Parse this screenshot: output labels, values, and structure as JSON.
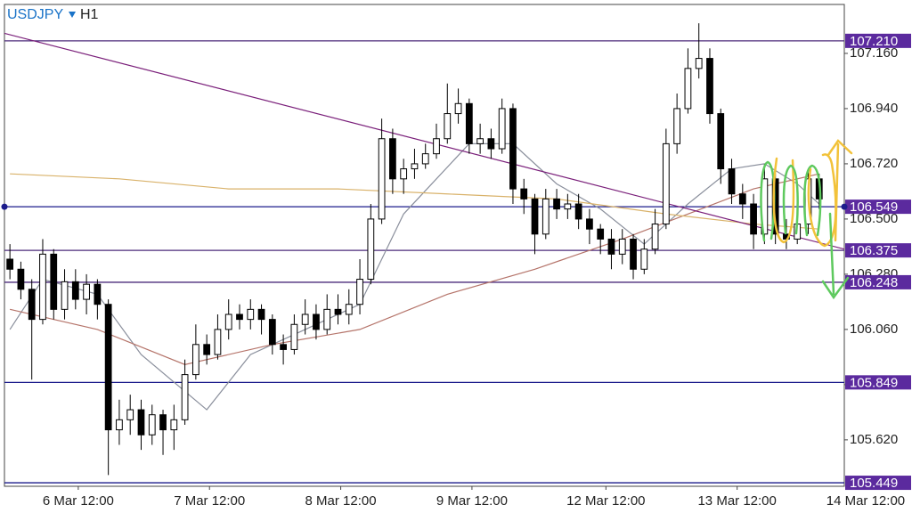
{
  "header": {
    "symbol": "USDJPY",
    "timeframe": "H1"
  },
  "chart_data": {
    "type": "candlestick",
    "up_color": "#ffffff",
    "down_color": "#000000",
    "open": [
      106.34,
      106.3,
      106.22,
      106.1,
      106.36,
      106.14,
      106.25,
      106.18,
      106.24,
      106.16,
      105.66,
      105.7,
      105.74,
      105.64,
      105.72,
      105.66,
      105.7,
      105.88,
      106.0,
      105.96,
      106.06,
      106.12,
      106.1,
      106.14,
      106.1,
      106.0,
      105.98,
      106.08,
      106.12,
      106.06,
      106.14,
      106.12,
      106.16,
      106.26,
      106.5,
      106.82,
      106.66,
      106.7,
      106.72,
      106.76,
      106.82,
      106.92,
      106.96,
      106.8,
      106.82,
      106.78,
      106.94,
      106.62,
      106.58,
      106.44,
      106.58,
      106.54,
      106.56,
      106.5,
      106.46,
      106.42,
      106.36,
      106.42,
      106.3,
      106.38,
      106.48,
      106.8,
      106.94,
      107.1,
      107.14,
      106.92,
      106.7,
      106.6,
      106.56,
      106.44,
      106.66,
      106.44,
      106.42,
      106.48,
      106.66
    ],
    "high": [
      106.4,
      106.33,
      106.26,
      106.42,
      106.38,
      106.3,
      106.3,
      106.28,
      106.26,
      106.18,
      105.78,
      105.8,
      105.78,
      105.76,
      105.74,
      105.76,
      105.94,
      106.08,
      106.04,
      106.12,
      106.18,
      106.16,
      106.18,
      106.16,
      106.12,
      106.04,
      106.12,
      106.18,
      106.16,
      106.2,
      106.2,
      106.22,
      106.34,
      106.56,
      106.9,
      106.86,
      106.74,
      106.78,
      106.8,
      106.88,
      107.04,
      107.02,
      106.98,
      106.88,
      106.86,
      106.98,
      106.96,
      106.66,
      106.6,
      106.62,
      106.62,
      106.6,
      106.6,
      106.54,
      106.48,
      106.46,
      106.46,
      106.44,
      106.42,
      106.54,
      106.86,
      107.0,
      107.18,
      107.28,
      107.18,
      106.94,
      106.74,
      106.64,
      106.6,
      106.72,
      106.68,
      106.5,
      106.54,
      106.7,
      106.68
    ],
    "low": [
      106.26,
      106.18,
      105.86,
      106.08,
      106.1,
      106.1,
      106.14,
      106.12,
      106.1,
      105.48,
      105.6,
      105.64,
      105.58,
      105.6,
      105.56,
      105.58,
      105.68,
      105.86,
      105.92,
      105.94,
      106.02,
      106.06,
      106.06,
      106.04,
      105.96,
      105.92,
      105.96,
      106.04,
      106.02,
      106.04,
      106.08,
      106.08,
      106.12,
      106.24,
      106.48,
      106.6,
      106.6,
      106.66,
      106.7,
      106.74,
      106.8,
      106.88,
      106.76,
      106.76,
      106.74,
      106.76,
      106.56,
      106.52,
      106.36,
      106.42,
      106.5,
      106.5,
      106.46,
      106.4,
      106.36,
      106.3,
      106.32,
      106.26,
      106.28,
      106.36,
      106.46,
      106.76,
      106.92,
      107.06,
      106.88,
      106.64,
      106.56,
      106.5,
      106.38,
      106.4,
      106.4,
      106.38,
      106.4,
      106.44,
      106.54
    ],
    "close": [
      106.3,
      106.22,
      106.1,
      106.36,
      106.14,
      106.25,
      106.18,
      106.24,
      106.16,
      105.66,
      105.7,
      105.74,
      105.64,
      105.72,
      105.66,
      105.7,
      105.88,
      106.0,
      105.96,
      106.06,
      106.12,
      106.1,
      106.14,
      106.1,
      106.0,
      105.98,
      106.08,
      106.12,
      106.06,
      106.14,
      106.12,
      106.16,
      106.26,
      106.5,
      106.82,
      106.66,
      106.7,
      106.72,
      106.76,
      106.82,
      106.92,
      106.96,
      106.8,
      106.82,
      106.78,
      106.94,
      106.62,
      106.58,
      106.44,
      106.58,
      106.54,
      106.56,
      106.5,
      106.46,
      106.42,
      106.36,
      106.42,
      106.3,
      106.38,
      106.48,
      106.8,
      106.94,
      107.1,
      107.14,
      106.92,
      106.7,
      106.6,
      106.56,
      106.44,
      106.66,
      106.44,
      106.42,
      106.48,
      106.66,
      106.58
    ],
    "lines": [
      {
        "color": "#8a8f9c",
        "x": [
          0,
          3,
          8,
          12,
          18,
          22,
          27,
          32,
          36,
          42,
          46,
          50,
          54,
          58,
          62,
          66,
          69,
          72,
          74
        ],
        "values": [
          106.06,
          106.26,
          106.2,
          105.96,
          105.74,
          105.96,
          106.06,
          106.16,
          106.52,
          106.8,
          106.8,
          106.64,
          106.54,
          106.4,
          106.56,
          106.7,
          106.72,
          106.64,
          106.56
        ]
      },
      {
        "color": "#b5746a",
        "x": [
          0,
          8,
          16,
          24,
          32,
          40,
          48,
          56,
          62,
          68,
          74
        ],
        "values": [
          106.14,
          106.06,
          105.92,
          106.0,
          106.06,
          106.2,
          106.3,
          106.42,
          106.52,
          106.62,
          106.68
        ]
      },
      {
        "color": "#d9b26a",
        "x": [
          0,
          10,
          20,
          30,
          40,
          50,
          60,
          68,
          74
        ],
        "values": [
          106.68,
          106.66,
          106.62,
          106.62,
          106.6,
          106.58,
          106.52,
          106.48,
          106.46
        ]
      },
      {
        "color": "#7a1f7a",
        "x": [
          -0.5,
          76.3
        ],
        "values": [
          107.24,
          106.38
        ]
      }
    ],
    "levels": [
      {
        "value": 107.21,
        "label": "107.210",
        "color": "#4b2a7a"
      },
      {
        "value": 106.549,
        "label": "106.549",
        "color": "#1c1c8c"
      },
      {
        "value": 106.375,
        "label": "106.375",
        "color": "#4b2a7a"
      },
      {
        "value": 106.248,
        "label": "106.248",
        "color": "#4b2a7a"
      },
      {
        "value": 105.849,
        "label": "105.849",
        "color": "#1c1c8c"
      },
      {
        "value": 105.449,
        "label": "105.449",
        "color": "#1c1c8c"
      }
    ],
    "label_color": "#5b2a9e",
    "xlim": [
      -0.5,
      76.3
    ],
    "ylim": [
      105.435,
      107.355
    ],
    "yticks": [
      {
        "value": 107.16,
        "label": "107.160"
      },
      {
        "value": 106.94,
        "label": "106.940"
      },
      {
        "value": 106.72,
        "label": "106.720"
      },
      {
        "value": 106.5,
        "label": "106.500"
      },
      {
        "value": 106.28,
        "label": "106.280"
      },
      {
        "value": 106.06,
        "label": "106.060"
      },
      {
        "value": 105.84,
        "label": "105.840"
      },
      {
        "value": 105.62,
        "label": "105.620"
      }
    ],
    "xticks": [
      {
        "value": 6.25,
        "label": "6 Mar 12:00"
      },
      {
        "value": 18.25,
        "label": "7 Mar 12:00"
      },
      {
        "value": 30.25,
        "label": "8 Mar 12:00"
      },
      {
        "value": 42.25,
        "label": "9 Mar 12:00"
      },
      {
        "value": 54.5,
        "label": "12 Mar 12:00"
      },
      {
        "value": 66.5,
        "label": "13 Mar 12:00"
      },
      {
        "value": 78.25,
        "label": "14 Mar 12:00"
      }
    ]
  }
}
